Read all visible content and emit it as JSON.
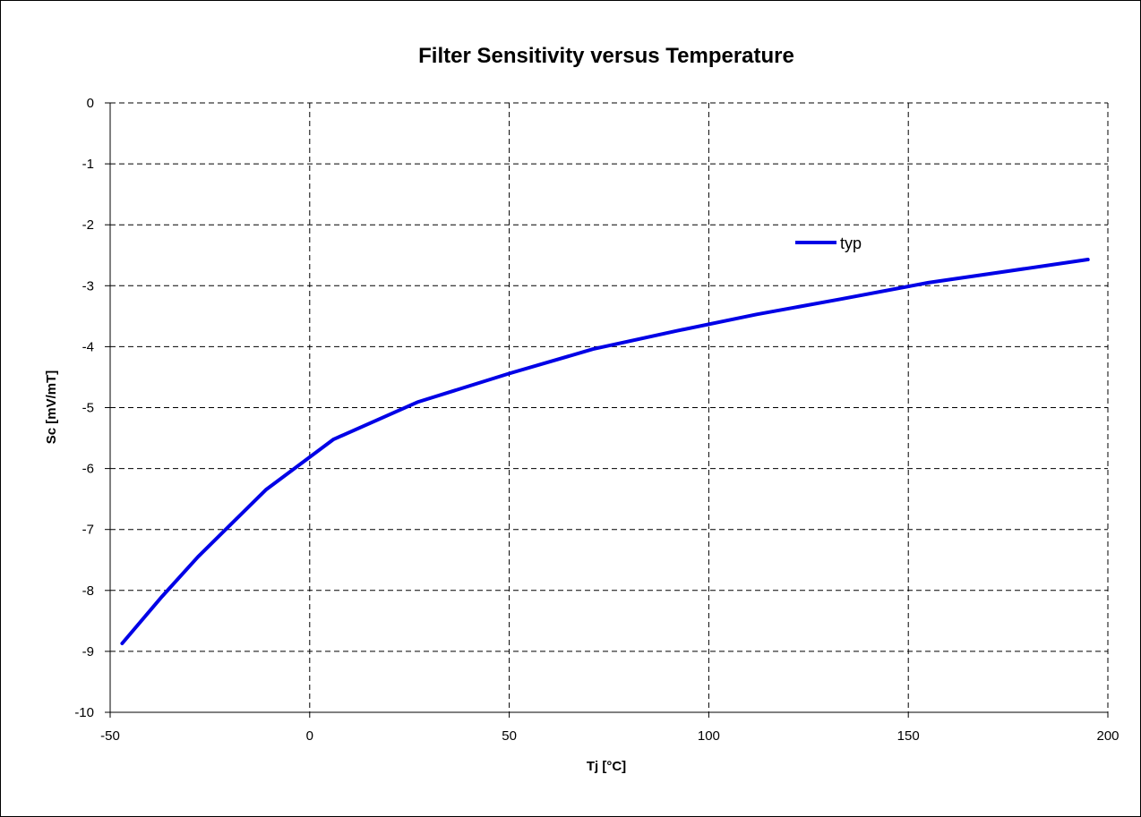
{
  "chart_data": {
    "type": "line",
    "title": "Filter Sensitivity versus Temperature",
    "xlabel": "Tj [°C]",
    "ylabel": "Sc  [mV/mT]",
    "xlim": [
      -50,
      200
    ],
    "ylim": [
      -10,
      0
    ],
    "xticks": [
      -50,
      0,
      50,
      100,
      150,
      200
    ],
    "yticks": [
      0,
      -1,
      -2,
      -3,
      -4,
      -5,
      -6,
      -7,
      -8,
      -9,
      -10
    ],
    "x_tick_labels": [
      "-50",
      "0",
      "50",
      "100",
      "150",
      "200"
    ],
    "y_tick_labels": [
      "0",
      "-1",
      "-2",
      "-3",
      "-4",
      "-5",
      "-6",
      "-7",
      "-8",
      "-9",
      "-10"
    ],
    "grid": true,
    "grid_style": "dashed",
    "legend_position": "upper-right",
    "series": [
      {
        "name": "typ",
        "color": "#0000e6",
        "x": [
          -47,
          -37,
          -28,
          -11,
          6,
          27,
          50,
          71,
          92,
          112,
          133,
          155,
          175,
          195
        ],
        "y": [
          -8.87,
          -8.1,
          -7.45,
          -6.35,
          -5.52,
          -4.91,
          -4.44,
          -4.04,
          -3.74,
          -3.47,
          -3.22,
          -2.95,
          -2.76,
          -2.57
        ]
      }
    ]
  }
}
